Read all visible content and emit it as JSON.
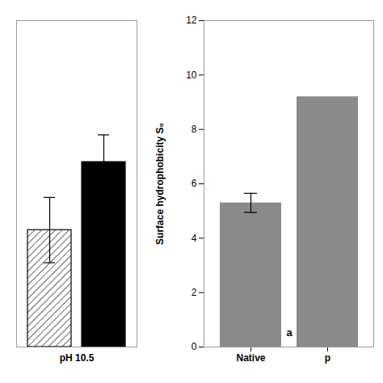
{
  "chart_data": [
    {
      "type": "bar",
      "categories": [
        "pH 10.5"
      ],
      "series": [
        {
          "color": "#ffffff",
          "values": [
            4.3
          ],
          "errors": [
            1.2
          ]
        },
        {
          "color": "#000000",
          "values": [
            6.8
          ],
          "errors": [
            1.0
          ]
        }
      ],
      "ylim": [
        0,
        12
      ],
      "tick_labels": "x"
    },
    {
      "type": "bar",
      "categories": [
        "Native",
        "p"
      ],
      "values": [
        5.3,
        9.2
      ],
      "errors": [
        0.35,
        null
      ],
      "color": "#8a8a8a",
      "ylabel": "Surface hydrophobicity S₀",
      "annotation": "a",
      "ylim": [
        0,
        12
      ],
      "yticks": [
        0,
        2,
        4,
        6,
        8,
        10,
        12
      ]
    }
  ]
}
